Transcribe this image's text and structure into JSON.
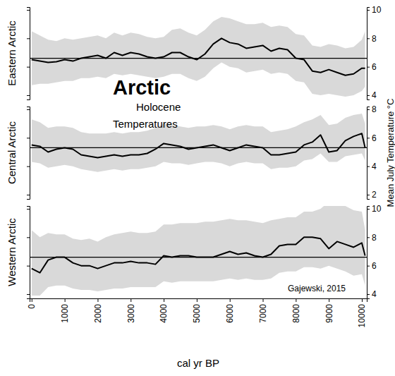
{
  "chart_data": {
    "type": "line",
    "title": "Arctic",
    "subtitle": [
      "Holocene",
      "Temperatures"
    ],
    "x_label": "cal yr BP",
    "y_label": "Mean July Temperature °C",
    "annotation": "Gajewski, 2015",
    "color": "#000000",
    "x": [
      0,
      250,
      500,
      750,
      1000,
      1250,
      1500,
      1750,
      2000,
      2250,
      2500,
      2750,
      3000,
      3250,
      3500,
      3750,
      4000,
      4250,
      4500,
      4750,
      5000,
      5250,
      5500,
      5750,
      6000,
      6250,
      6500,
      6750,
      7000,
      7250,
      7500,
      7750,
      8000,
      8250,
      8500,
      8750,
      9000,
      9250,
      9500,
      9750,
      10000,
      10100
    ],
    "xlim": [
      -60,
      10150
    ],
    "xticks": [
      0,
      1000,
      2000,
      3000,
      4000,
      5000,
      6000,
      7000,
      8000,
      9000,
      10000
    ],
    "panels": [
      {
        "name": "Eastern Arctic",
        "values": [
          6.5,
          6.4,
          6.3,
          6.35,
          6.5,
          6.4,
          6.6,
          6.7,
          6.8,
          6.6,
          7.0,
          6.8,
          7.0,
          6.9,
          6.7,
          6.6,
          6.7,
          7.0,
          7.0,
          6.7,
          6.5,
          6.9,
          7.6,
          8.0,
          7.7,
          7.6,
          7.3,
          7.4,
          7.5,
          7.1,
          7.3,
          7.2,
          6.6,
          6.5,
          5.7,
          5.6,
          5.8,
          5.6,
          5.4,
          5.5,
          5.9,
          5.9
        ],
        "upper": [
          8.5,
          8.2,
          7.9,
          7.8,
          8.0,
          7.9,
          8.0,
          8.1,
          8.2,
          8.0,
          8.4,
          8.2,
          8.4,
          8.3,
          8.1,
          8.0,
          8.1,
          8.6,
          8.7,
          8.4,
          8.2,
          8.6,
          9.2,
          9.5,
          9.4,
          9.2,
          9.0,
          9.0,
          9.1,
          8.8,
          8.9,
          8.8,
          8.3,
          8.2,
          7.5,
          7.4,
          7.6,
          7.5,
          7.3,
          7.4,
          7.9,
          8.5
        ],
        "lower": [
          4.7,
          4.8,
          4.8,
          4.9,
          5.0,
          5.0,
          5.2,
          5.2,
          5.3,
          5.2,
          5.5,
          5.4,
          5.5,
          5.4,
          5.3,
          5.2,
          5.3,
          5.5,
          5.5,
          5.2,
          5.0,
          5.3,
          5.9,
          6.3,
          6.0,
          5.9,
          5.6,
          5.7,
          5.8,
          5.5,
          5.6,
          5.5,
          5.0,
          4.9,
          4.1,
          4.0,
          4.1,
          4.0,
          3.9,
          4.0,
          4.3,
          4.6
        ],
        "mean": 6.6,
        "ylim": [
          3.7,
          10.2
        ],
        "yticks": [
          4,
          6,
          8,
          10
        ]
      },
      {
        "name": "Central Arctic",
        "values": [
          5.5,
          5.4,
          5.0,
          5.2,
          5.3,
          5.2,
          4.8,
          4.7,
          4.6,
          4.7,
          4.8,
          4.7,
          4.8,
          4.8,
          4.9,
          5.2,
          5.6,
          5.5,
          5.4,
          5.2,
          5.3,
          5.4,
          5.5,
          5.3,
          5.1,
          5.3,
          5.5,
          5.4,
          5.3,
          4.8,
          4.8,
          4.9,
          5.0,
          5.5,
          5.7,
          6.2,
          5.0,
          5.1,
          5.8,
          6.1,
          6.3,
          5.3
        ],
        "upper": [
          7.3,
          7.1,
          6.7,
          6.8,
          6.8,
          6.7,
          6.4,
          6.3,
          6.3,
          6.3,
          6.4,
          6.3,
          6.4,
          6.4,
          6.5,
          6.7,
          7.0,
          6.9,
          6.8,
          6.7,
          6.8,
          6.8,
          6.9,
          6.8,
          6.6,
          6.8,
          6.9,
          6.8,
          6.8,
          6.4,
          6.5,
          6.6,
          6.8,
          7.1,
          7.3,
          7.6,
          6.9,
          7.0,
          7.4,
          7.6,
          7.7,
          7.0
        ],
        "lower": [
          4.3,
          4.2,
          3.9,
          4.0,
          4.1,
          4.0,
          3.8,
          3.7,
          3.6,
          3.7,
          3.8,
          3.7,
          3.8,
          3.8,
          3.9,
          4.0,
          4.3,
          4.2,
          4.2,
          4.1,
          4.2,
          4.3,
          4.3,
          4.2,
          4.0,
          4.2,
          4.3,
          4.2,
          4.2,
          3.8,
          3.9,
          3.9,
          4.0,
          4.4,
          4.5,
          4.9,
          4.3,
          4.3,
          4.7,
          4.8,
          4.9,
          4.4
        ],
        "mean": 5.3,
        "ylim": [
          1.7,
          8.2
        ],
        "yticks": [
          2,
          4,
          6,
          8
        ]
      },
      {
        "name": "Western Arctic",
        "values": [
          5.8,
          5.5,
          6.4,
          6.6,
          6.6,
          6.2,
          6.0,
          6.0,
          5.8,
          6.0,
          6.2,
          6.2,
          6.3,
          6.2,
          6.2,
          6.1,
          6.7,
          6.6,
          6.7,
          6.7,
          6.6,
          6.6,
          6.6,
          6.8,
          7.0,
          6.8,
          6.9,
          6.7,
          6.6,
          6.8,
          7.4,
          7.5,
          7.5,
          8.0,
          8.0,
          7.9,
          7.2,
          7.7,
          7.5,
          7.3,
          7.6,
          6.7
        ],
        "upper": [
          8.5,
          8.0,
          8.3,
          8.2,
          8.2,
          7.9,
          7.8,
          7.9,
          7.7,
          8.0,
          8.2,
          8.3,
          8.4,
          8.3,
          8.3,
          8.4,
          8.9,
          8.9,
          9.0,
          9.0,
          9.0,
          9.1,
          9.1,
          9.2,
          9.3,
          9.2,
          9.2,
          9.1,
          9.0,
          9.2,
          9.3,
          9.4,
          9.4,
          9.8,
          9.8,
          10.0,
          10.5,
          10.4,
          10.2,
          9.9,
          9.8,
          8.5
        ],
        "lower": [
          3.9,
          3.9,
          4.5,
          4.6,
          4.6,
          4.4,
          4.3,
          4.3,
          4.2,
          4.3,
          4.4,
          4.4,
          4.5,
          4.5,
          4.5,
          4.5,
          4.9,
          4.8,
          4.9,
          4.9,
          4.9,
          4.9,
          4.9,
          5.0,
          5.1,
          5.0,
          5.1,
          5.0,
          5.0,
          5.1,
          5.5,
          5.6,
          5.6,
          5.9,
          5.9,
          5.8,
          6.0,
          5.8,
          5.6,
          5.3,
          5.4,
          4.6
        ],
        "mean": 6.6,
        "ylim": [
          3.7,
          10.2
        ],
        "yticks": [
          4,
          6,
          8,
          10
        ]
      }
    ]
  }
}
